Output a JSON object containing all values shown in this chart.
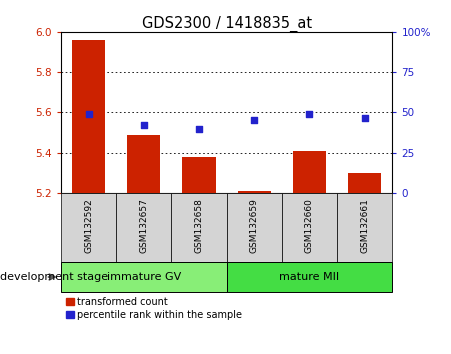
{
  "title": "GDS2300 / 1418835_at",
  "samples": [
    "GSM132592",
    "GSM132657",
    "GSM132658",
    "GSM132659",
    "GSM132660",
    "GSM132661"
  ],
  "bar_values": [
    5.96,
    5.49,
    5.38,
    5.21,
    5.41,
    5.3
  ],
  "bar_base": 5.2,
  "blue_values": [
    5.59,
    5.535,
    5.52,
    5.56,
    5.592,
    5.572
  ],
  "ylim": [
    5.2,
    6.0
  ],
  "yticks_left": [
    5.2,
    5.4,
    5.6,
    5.8,
    6.0
  ],
  "yticks_right_vals": [
    5.2,
    5.4,
    5.6,
    5.8,
    6.0
  ],
  "yticks_right_labels": [
    "0",
    "25",
    "50",
    "75",
    "100%"
  ],
  "grid_vals": [
    5.4,
    5.6,
    5.8
  ],
  "bar_color": "#cc2200",
  "blue_color": "#2222cc",
  "bar_width": 0.6,
  "group1_label": "immature GV",
  "group2_label": "mature MII",
  "group1_indices": [
    0,
    1,
    2
  ],
  "group2_indices": [
    3,
    4,
    5
  ],
  "group1_color": "#88ee77",
  "group2_color": "#44dd44",
  "stage_label": "development stage",
  "legend1_label": "transformed count",
  "legend2_label": "percentile rank within the sample",
  "ylabel_left_color": "#cc2200",
  "ylabel_right_color": "#2222cc",
  "title_fontsize": 10.5,
  "tick_fontsize": 7.5,
  "sample_fontsize": 6.5,
  "group_fontsize": 8,
  "legend_fontsize": 7,
  "stage_fontsize": 8
}
